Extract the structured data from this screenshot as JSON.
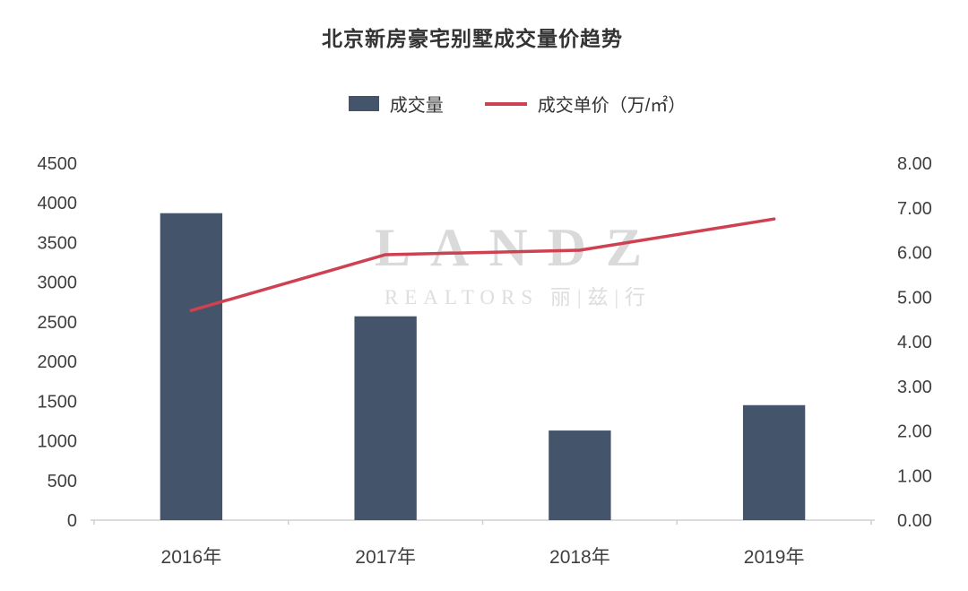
{
  "watermark": {
    "brand": "LANDZ",
    "sub": "REALTORS 丽|兹|行"
  },
  "chart_data": {
    "type": "bar",
    "subtype": "bar+line combo, dual axis",
    "title": "北京新房豪宅别墅成交量价趋势",
    "categories": [
      "2016年",
      "2017年",
      "2018年",
      "2019年"
    ],
    "series": [
      {
        "name": "成交量",
        "type": "bar",
        "axis": "left",
        "color": "#44546A",
        "values": [
          3870,
          2570,
          1130,
          1450
        ]
      },
      {
        "name": "成交单价（万/㎡）",
        "type": "line",
        "axis": "right",
        "color": "#CE4150",
        "values": [
          4.7,
          5.95,
          6.05,
          6.75
        ]
      }
    ],
    "left_axis": {
      "min": 0,
      "max": 4500,
      "step": 500,
      "ticks": [
        "4500",
        "4000",
        "3500",
        "3000",
        "2500",
        "2000",
        "1500",
        "1000",
        "500",
        "0"
      ]
    },
    "right_axis": {
      "min": 0,
      "max": 8,
      "step": 1,
      "ticks": [
        "8.00",
        "7.00",
        "6.00",
        "5.00",
        "4.00",
        "3.00",
        "2.00",
        "1.00",
        "0.00"
      ]
    },
    "xlabel": "",
    "ylabel": "",
    "grid": false,
    "legend_position": "top"
  }
}
